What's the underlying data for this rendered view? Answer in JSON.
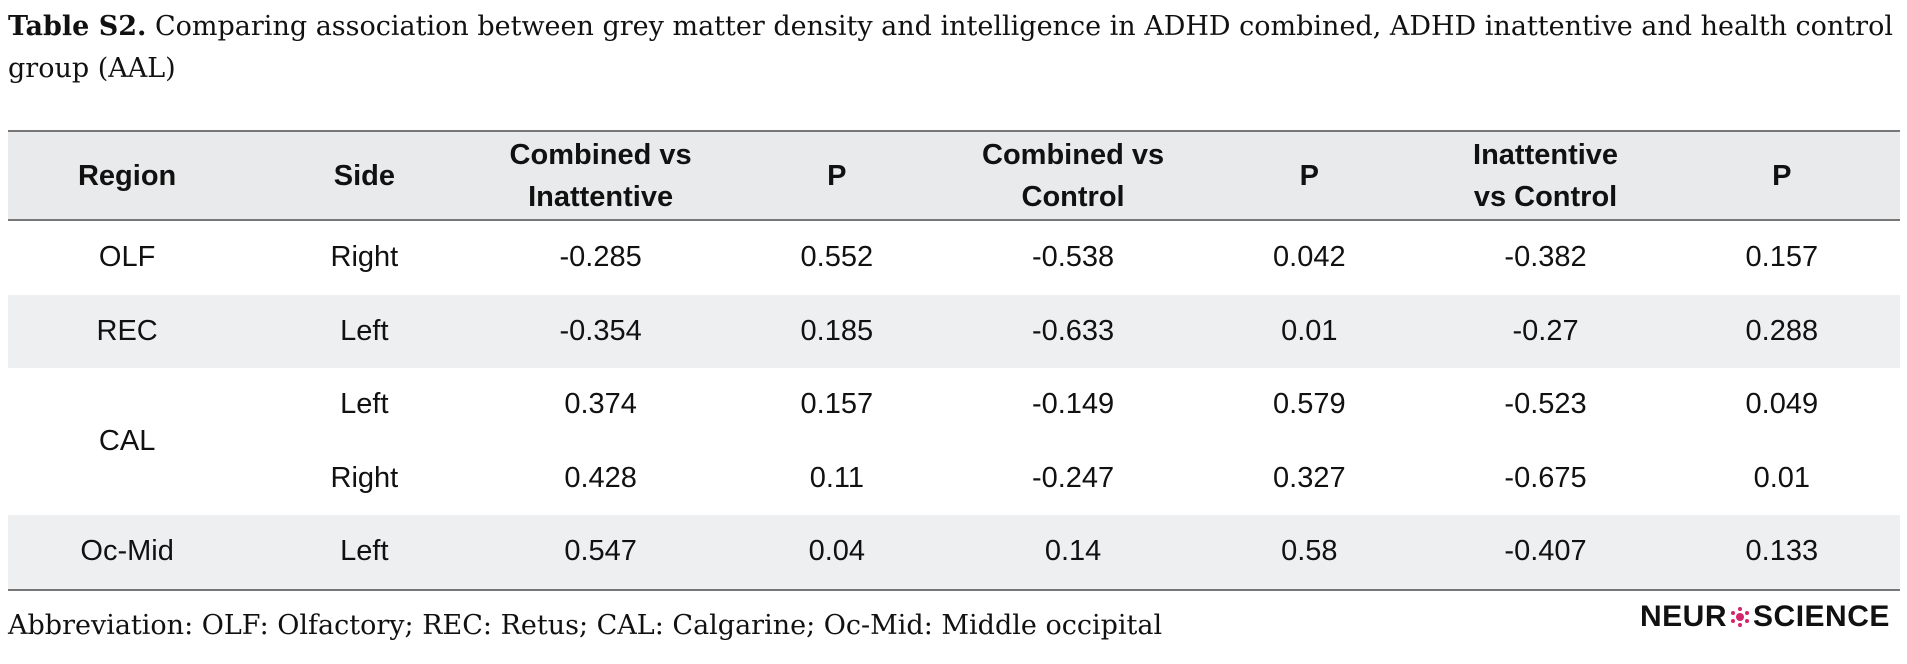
{
  "caption": {
    "label": "Table S2.",
    "text": "Comparing association between grey matter density and intelligence in ADHD combined, ADHD inattentive and health control group (AAL)"
  },
  "table": {
    "headers": {
      "region": "Region",
      "side": "Side",
      "combined_vs_inattentive_line1": "Combined vs",
      "combined_vs_inattentive_line2": "Inattentive",
      "p1": "P",
      "combined_vs_control_line1": "Combined vs",
      "combined_vs_control_line2": "Control",
      "p2": "P",
      "inattentive_vs_control_line1": "Inattentive",
      "inattentive_vs_control_line2": "vs Control",
      "p3": "P"
    },
    "rows": [
      {
        "region": "OLF",
        "side": "Right",
        "c_vs_i": "-0.285",
        "p1": "0.552",
        "c_vs_c": "-0.538",
        "p2": "0.042",
        "i_vs_c": "-0.382",
        "p3": "0.157"
      },
      {
        "region": "REC",
        "side": "Left",
        "c_vs_i": "-0.354",
        "p1": "0.185",
        "c_vs_c": "-0.633",
        "p2": "0.01",
        "i_vs_c": "-0.27",
        "p3": "0.288"
      },
      {
        "region": "CAL",
        "side": "Left",
        "c_vs_i": "0.374",
        "p1": "0.157",
        "c_vs_c": "-0.149",
        "p2": "0.579",
        "i_vs_c": "-0.523",
        "p3": "0.049"
      },
      {
        "region": "",
        "side": "Right",
        "c_vs_i": "0.428",
        "p1": "0.11",
        "c_vs_c": "-0.247",
        "p2": "0.327",
        "i_vs_c": "-0.675",
        "p3": "0.01"
      },
      {
        "region": "Oc-Mid",
        "side": "Left",
        "c_vs_i": "0.547",
        "p1": "0.04",
        "c_vs_c": "0.14",
        "p2": "0.58",
        "i_vs_c": "-0.407",
        "p3": "0.133"
      }
    ]
  },
  "footer": {
    "abbreviation": "Abbreviation: OLF: Olfactory; REC: Retus; CAL: Calgarine; Oc-Mid: Middle occipital"
  },
  "logo": {
    "left": "NEUR",
    "right": "SCIENCE",
    "mark_icon": "neuron-icon",
    "accent_color": "#d6246e"
  }
}
